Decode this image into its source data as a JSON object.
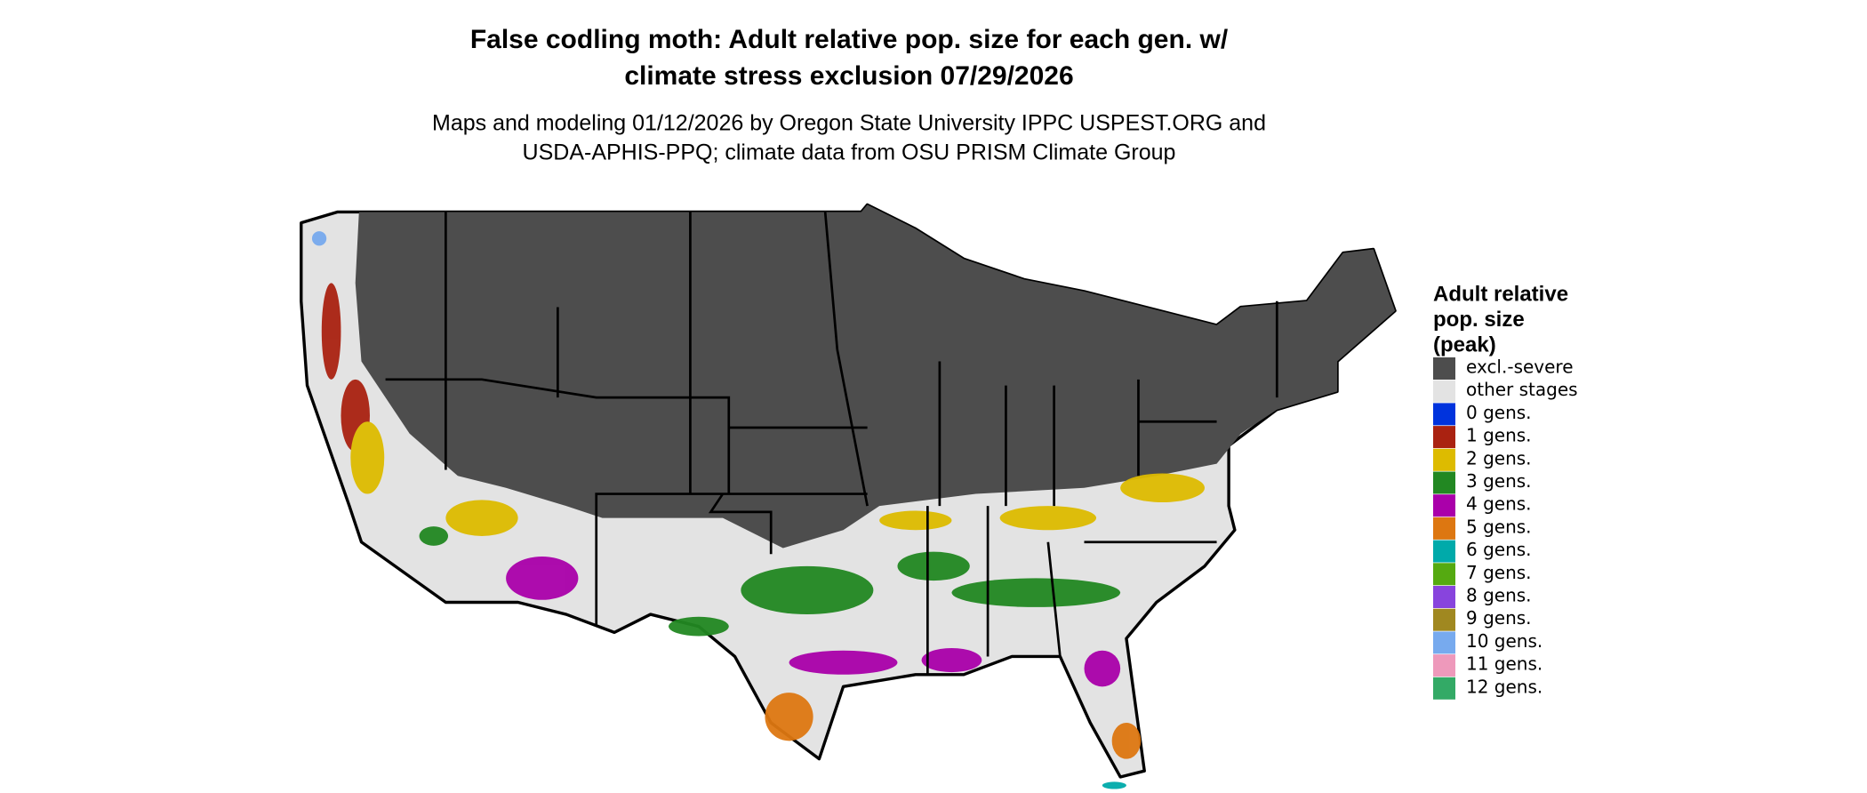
{
  "header": {
    "title": [
      "False codling moth: Adult relative pop. size for each gen. w/",
      "climate stress exclusion 07/29/2026"
    ],
    "subtitle": [
      "Maps and modeling 01/12/2026 by Oregon State University IPPC USPEST.ORG and",
      "USDA-APHIS-PPQ; climate data from OSU PRISM Climate Group"
    ]
  },
  "legend": {
    "title": [
      "Adult relative",
      "pop. size",
      "(peak)"
    ],
    "items": [
      {
        "label": "excl.-severe",
        "color": "#4d4d4d"
      },
      {
        "label": "other stages",
        "color": "#e3e3e3"
      },
      {
        "label": "0 gens.",
        "color": "#0033dd"
      },
      {
        "label": "1 gens.",
        "color": "#aa2211"
      },
      {
        "label": "2 gens.",
        "color": "#ddbb00"
      },
      {
        "label": "3 gens.",
        "color": "#228822"
      },
      {
        "label": "4 gens.",
        "color": "#aa00aa"
      },
      {
        "label": "5 gens.",
        "color": "#dd7711"
      },
      {
        "label": "6 gens.",
        "color": "#00aaaa"
      },
      {
        "label": "7 gens.",
        "color": "#55aa11"
      },
      {
        "label": "8 gens.",
        "color": "#8844dd"
      },
      {
        "label": "9 gens.",
        "color": "#a08820"
      },
      {
        "label": "10 gens.",
        "color": "#77aaee"
      },
      {
        "label": "11 gens.",
        "color": "#ee99bb"
      },
      {
        "label": "12 gens.",
        "color": "#33aa66"
      }
    ]
  }
}
